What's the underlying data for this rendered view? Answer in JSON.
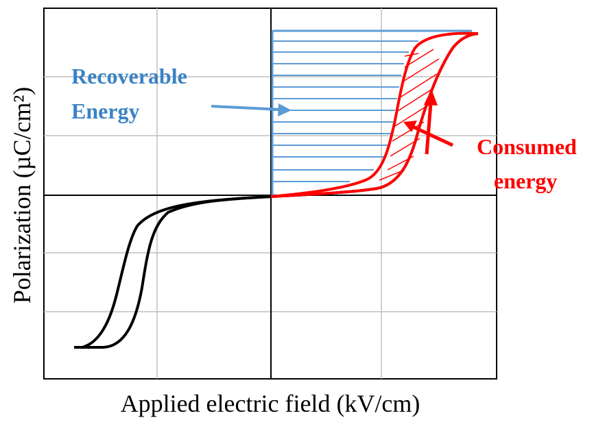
{
  "axes": {
    "x_label": "Applied electric field (kV/cm)",
    "y_label": "Polarization (µC/cm²)"
  },
  "annotations": {
    "recoverable_line1": "Recoverable",
    "recoverable_line2": "Energy",
    "consumed_line1": "Consumed",
    "consumed_line2": "energy"
  },
  "colors": {
    "recoverable": "#5B9BD5",
    "recoverable_text": "#3B82C4",
    "consumed": "#FF0000",
    "curve": "#000000",
    "grid": "#BFBFBF"
  }
}
